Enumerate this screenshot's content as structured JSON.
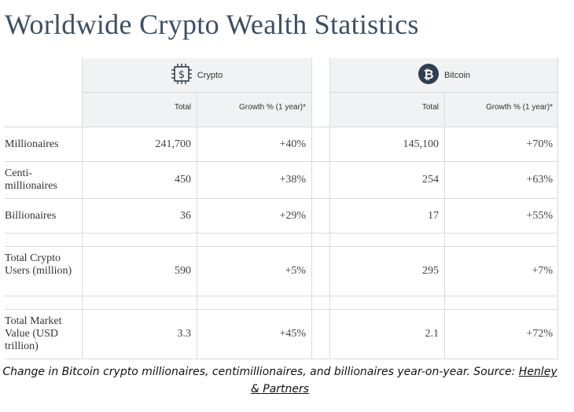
{
  "title": "Worldwide Crypto Wealth Statistics",
  "groups": {
    "crypto": {
      "label": "Crypto",
      "icon": "dollar-chip-icon"
    },
    "bitcoin": {
      "label": "Bitcoin",
      "icon": "bitcoin-icon"
    }
  },
  "columns": {
    "total": "Total",
    "growth": "Growth % (1 year)*"
  },
  "rows": [
    {
      "label": "Millionaires",
      "crypto_total": "241,700",
      "crypto_growth": "+40%",
      "bitcoin_total": "145,100",
      "bitcoin_growth": "+70%"
    },
    {
      "label": "Centi- millionaires",
      "crypto_total": "450",
      "crypto_growth": "+38%",
      "bitcoin_total": "254",
      "bitcoin_growth": "+63%"
    },
    {
      "label": "Billionaires",
      "crypto_total": "36",
      "crypto_growth": "+29%",
      "bitcoin_total": "17",
      "bitcoin_growth": "+55%"
    },
    {
      "label": "Total Crypto Users (million)",
      "crypto_total": "590",
      "crypto_growth": "+5%",
      "bitcoin_total": "295",
      "bitcoin_growth": "+7%"
    },
    {
      "label": "Total Market Value (USD trillion)",
      "crypto_total": "3.3",
      "crypto_growth": "+45%",
      "bitcoin_total": "2.1",
      "bitcoin_growth": "+72%"
    }
  ],
  "caption": {
    "text": "Change in Bitcoin crypto millionaires, centimillionaires, and billionaires year-on-year. Source: ",
    "link": "Henley & Partners"
  },
  "colors": {
    "title": "#3d4f63",
    "header_bg": "#f1f2f4",
    "bitcoin_badge": "#2f3e50"
  }
}
